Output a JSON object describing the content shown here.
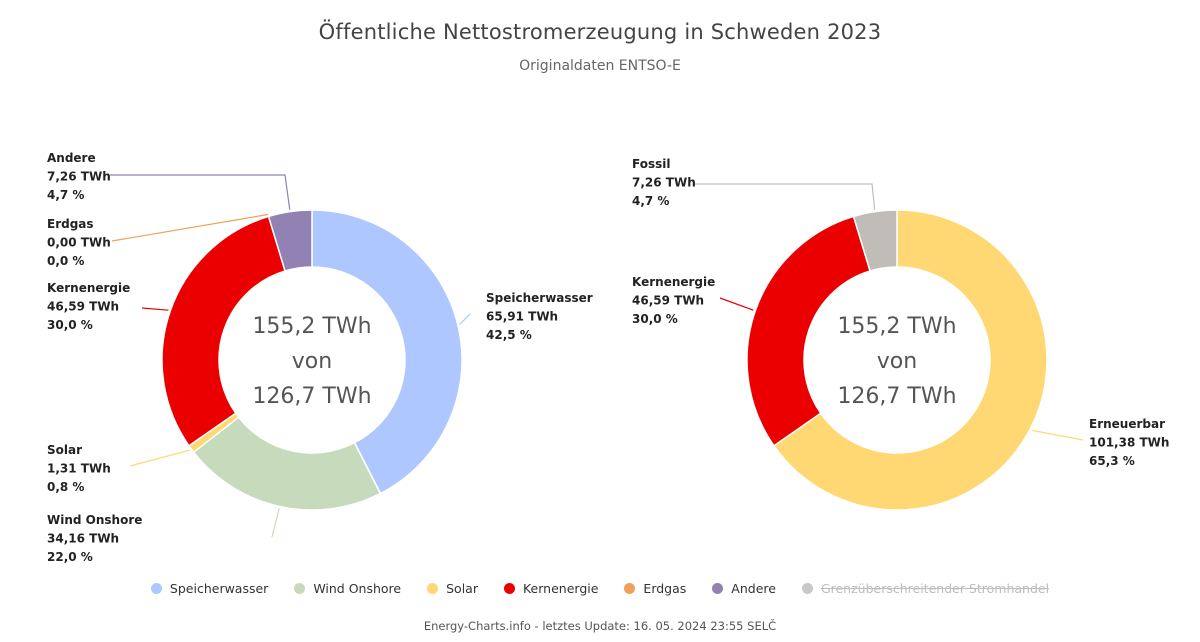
{
  "title": "Öffentliche Nettostromerzeugung in Schweden 2023",
  "subtitle": "Originaldaten ENTSO-E",
  "footer": "Energy-Charts.info - letztes Update: 16. 05. 2024 23:55 SELČ",
  "colors": {
    "Speicherwasser": "#aec7ff",
    "Wind Onshore": "#c5dbbb",
    "Solar": "#ffd873",
    "Kernenergie": "#ea0000",
    "Erdgas": "#f0a058",
    "Andere": "#9281b3",
    "Fossil": "#c0bcb8",
    "Erneuerbar": "#ffd873",
    "Grenzüberschreitender Stromhandel": "#c8c8c8"
  },
  "legend": [
    {
      "label": "Speicherwasser",
      "color": "#aec7ff",
      "enabled": true
    },
    {
      "label": "Wind Onshore",
      "color": "#c5dbbb",
      "enabled": true
    },
    {
      "label": "Solar",
      "color": "#ffd873",
      "enabled": true
    },
    {
      "label": "Kernenergie",
      "color": "#ea0000",
      "enabled": true
    },
    {
      "label": "Erdgas",
      "color": "#f0a058",
      "enabled": true
    },
    {
      "label": "Andere",
      "color": "#9281b3",
      "enabled": true
    },
    {
      "label": "Grenzüberschreitender Stromhandel",
      "color": "#c8c8c8",
      "enabled": false
    }
  ],
  "chart_data": [
    {
      "type": "pie",
      "variant": "donut",
      "center_text": [
        "155,2 TWh",
        "von",
        "126,7 TWh"
      ],
      "slices": [
        {
          "name": "Speicherwasser",
          "value": 65.91,
          "value_label": "65,91 TWh",
          "percent_label": "42,5 %"
        },
        {
          "name": "Wind Onshore",
          "value": 34.16,
          "value_label": "34,16 TWh",
          "percent_label": "22,0 %"
        },
        {
          "name": "Solar",
          "value": 1.31,
          "value_label": "1,31 TWh",
          "percent_label": "0,8 %"
        },
        {
          "name": "Kernenergie",
          "value": 46.59,
          "value_label": "46,59 TWh",
          "percent_label": "30,0 %"
        },
        {
          "name": "Erdgas",
          "value": 0.0,
          "value_label": "0,00 TWh",
          "percent_label": "0,0 %"
        },
        {
          "name": "Andere",
          "value": 7.26,
          "value_label": "7,26 TWh",
          "percent_label": "4,7 %"
        }
      ]
    },
    {
      "type": "pie",
      "variant": "donut",
      "center_text": [
        "155,2 TWh",
        "von",
        "126,7 TWh"
      ],
      "slices": [
        {
          "name": "Erneuerbar",
          "value": 101.38,
          "value_label": "101,38 TWh",
          "percent_label": "65,3 %"
        },
        {
          "name": "Kernenergie",
          "value": 46.59,
          "value_label": "46,59 TWh",
          "percent_label": "30,0 %"
        },
        {
          "name": "Fossil",
          "value": 7.26,
          "value_label": "7,26 TWh",
          "percent_label": "4,7 %"
        }
      ]
    }
  ]
}
